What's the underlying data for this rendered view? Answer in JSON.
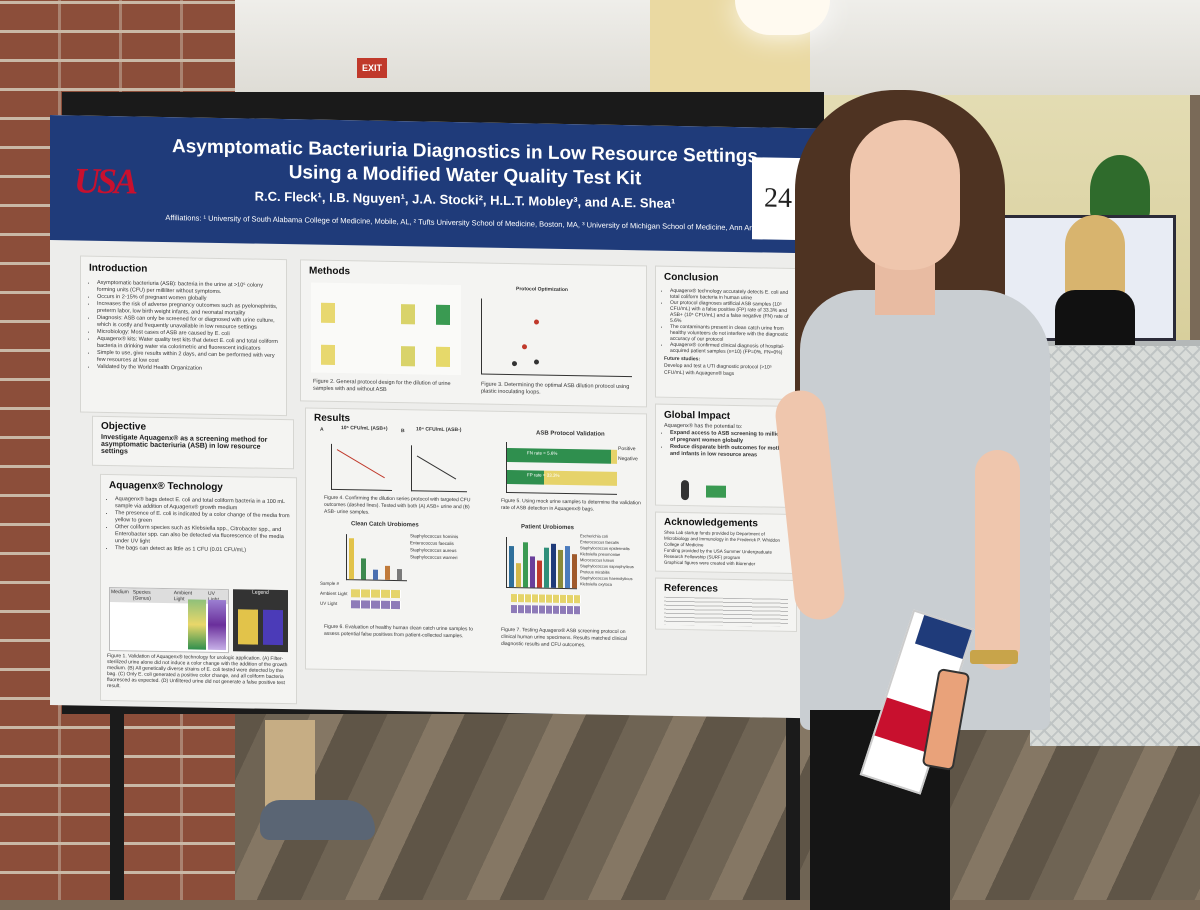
{
  "environment": {
    "exit_sign": "EXIT"
  },
  "poster": {
    "logo_text": "USA",
    "title": "Asymptomatic Bacteriuria Diagnostics in Low Resource Settings Using a Modified Water Quality Test Kit",
    "authors": "R.C. Fleck¹, I.B. Nguyen¹, J.A. Stocki², H.L.T. Mobley³, and A.E. Shea¹",
    "affiliations": "Affiliations: ¹ University of South Alabama College of Medicine, Mobile, AL, ² Tufts University School of Medicine, Boston, MA, ³ University of Michigan School of Medicine, Ann Arbor, MI",
    "poster_number": "24",
    "sections": {
      "introduction": {
        "heading": "Introduction",
        "bullets": [
          "Asymptomatic bacteriuria (ASB): bacteria in the urine at >10⁵ colony forming units (CFU) per milliliter without symptoms.",
          "Occurs in 2-15% of pregnant women globally",
          "Increases the risk of adverse pregnancy outcomes such as pyelonephritis, preterm labor, low birth weight infants, and neonatal mortality",
          "Diagnosis: ASB can only be screened for or diagnosed with urine culture, which is costly and frequently unavailable in low resource settings",
          "Microbiology: Most cases of ASB are caused by E. coli",
          "Aquagenx® kits: Water quality test kits that detect E. coli and total coliform bacteria in drinking water via colorimetric and fluorescent indicators",
          "Simple to use, give results within 2 days, and can be performed with very few resources at low cost",
          "Validated by the World Health Organization"
        ]
      },
      "methods": {
        "heading": "Methods",
        "figure2_caption": "Figure 2. General protocol design for the dilution of urine samples with and without ASB",
        "protocol_title": "Protocol Optimization",
        "figure3_caption": "Figure 3. Determining the optimal ASB dilution protocol using plastic inoculating loops."
      },
      "objective": {
        "heading": "Objective",
        "text": "Investigate Aquagenx® as a screening method for asymptomatic bacteriuria (ASB) in low resource settings"
      },
      "technology": {
        "heading": "Aquagenx® Technology",
        "bullets": [
          "Aquagenx® bags detect E. coli and total coliform bacteria in a 100 mL sample via addition of Aquagenx® growth medium",
          "The presence of E. coli is indicated by a color change of the media from yellow to green",
          "Other coliform species such as Klebsiella spp., Citrobacter spp., and Enterobacter spp. can also be detected via fluorescence of the media under UV light",
          "The bags can detect as little as 1 CFU (0.01 CFU/mL)"
        ],
        "table_header": [
          "Medium",
          "Species (Genus)",
          "Ambient Light",
          "UV Light"
        ],
        "legend_title": "Legend",
        "figure1_caption": "Figure 1. Validation of Aquagenx® technology for urologic application. (A) Filter-sterilized urine alone did not induce a color change with the addition of the growth medium. (B) All genetically diverse strains of E. coli tested were detected by the bag. (C) Only E. coli generated a positive color change, and all coliform bacteria fluoresced as expected. (D) Unfiltered urine did not generate a false positive test result."
      },
      "results": {
        "heading": "Results",
        "panel_a_label": "A",
        "panel_a_title": "10⁵ CFU/mL (ASB+)",
        "panel_b_label": "B",
        "panel_b_title": "10⁴ CFU/mL (ASB-)",
        "figure4_caption": "Figure 4. Confirming the dilution series protocol with targeted CFU outcomes (dashed lines). Tested with both (A) ASB+ urine and (B) ASB- urine samples.",
        "validation_title": "ASB Protocol Validation",
        "fn_rate": "FN rate = 5.6%",
        "fp_rate": "FP rate = 33.3%",
        "legend_positive": "Positive",
        "legend_negative": "Negative",
        "figure5_caption": "Figure 5. Using mock urine samples to determine the validation rate of ASB detection in Aquagenx® bags.",
        "clean_catch_title": "Clean Catch Urobiomes",
        "clean_catch_legend": [
          "Staphylococcus hominis",
          "Enterococcus faecalis",
          "Staphylococcus aureus",
          "Staphylococcus warneri"
        ],
        "figure6_caption": "Figure 6. Evaluation of healthy human clean catch urine samples to assess potential false positives from patient-collected samples.",
        "patient_title": "Patient Urobiomes",
        "patient_legend": [
          "Escherichia coli",
          "Enterococcus faecalis",
          "Staphylococcus epidermidis",
          "Klebsiella pneumoniae",
          "Micrococcus luteus",
          "Staphylococcus saprophyticus",
          "Proteus mirabilis",
          "Staphylococcus haemolyticus",
          "Klebsiella oxytoca"
        ],
        "figure7_caption": "Figure 7. Testing Aquagenx® ASB screening protocol on clinical human urine specimens. Results matched clinical diagnostic results and CFU outcomes.",
        "row_ambient": "Ambient Light",
        "row_uv": "UV Light",
        "sample_label": "Sample #"
      },
      "conclusion": {
        "heading": "Conclusion",
        "bullets": [
          "Aquagenx® technology accurately detects E. coli and total coliform bacteria in human urine",
          "Our protocol diagnoses artificial ASB samples (10⁵ CFU/mL) with a false positive (FP) rate of 33.3% and ASB+ (10⁵ CFU/mL) and a false negative (FN) rate of 5.6%",
          "The contaminants present in clean catch urine from healthy volunteers do not interfere with the diagnostic accuracy of our protocol",
          "Aquagenx® confirmed clinical diagnosis of hospital-acquired patient samples (n=10) (FP=0%, FN=0%)"
        ],
        "future_heading": "Future studies:",
        "future": "Develop and test a UTI diagnostic protocol (>10⁵ CFU/mL) with Aquagenx® bags"
      },
      "impact": {
        "heading": "Global Impact",
        "intro": "Aquagenx® has the potential to:",
        "bullets": [
          "Expand access to ASB screening to millions of pregnant women globally",
          "Reduce disparate birth outcomes for mothers and infants in low resource areas"
        ]
      },
      "acknowledgements": {
        "heading": "Acknowledgements",
        "lines": [
          "Shea Lab startup funds provided by Department of Microbiology and Immunology in the Frederick P. Whiddon College of Medicine",
          "Funding provided by the USA Summer Undergraduate Research Fellowship (SURF) program",
          "Graphical figures were created with Biorender"
        ]
      },
      "references": {
        "heading": "References"
      }
    }
  },
  "chart_data": [
    {
      "type": "bar",
      "title": "ASB Protocol Validation",
      "categories": [
        "10⁵ CFU/mL (ASB+)",
        "10⁴ CFU/mL (ASB-)"
      ],
      "series": [
        {
          "name": "Positive",
          "values": [
            17,
            6
          ],
          "color": "#2f8f4e"
        },
        {
          "name": "Negative",
          "values": [
            1,
            12
          ],
          "color": "#e6d36a"
        }
      ],
      "xlabel": "Trials",
      "xlim": [
        0,
        18
      ]
    },
    {
      "type": "bar",
      "title": "Clean Catch Urobiomes",
      "categories": [
        "1",
        "2",
        "3",
        "4",
        "5"
      ],
      "values": [
        4.6,
        2.4,
        1.1,
        1.6,
        1.2
      ],
      "ylabel": "CFU/mL",
      "xlabel": "Sample #"
    },
    {
      "type": "bar",
      "title": "Patient Urobiomes",
      "categories": [
        "1",
        "2",
        "3",
        "4",
        "5",
        "6",
        "7",
        "8",
        "9",
        "10"
      ],
      "values": [
        5.2,
        3.1,
        5.8,
        4.0,
        3.5,
        5.1,
        5.6,
        4.9,
        5.3,
        4.4
      ],
      "ylabel": "CFU/mL"
    }
  ],
  "colors": {
    "poster_header": "#1f3b7a",
    "usa_red": "#c8102e",
    "positive": "#2f8f4e",
    "negative": "#e6d36a"
  }
}
